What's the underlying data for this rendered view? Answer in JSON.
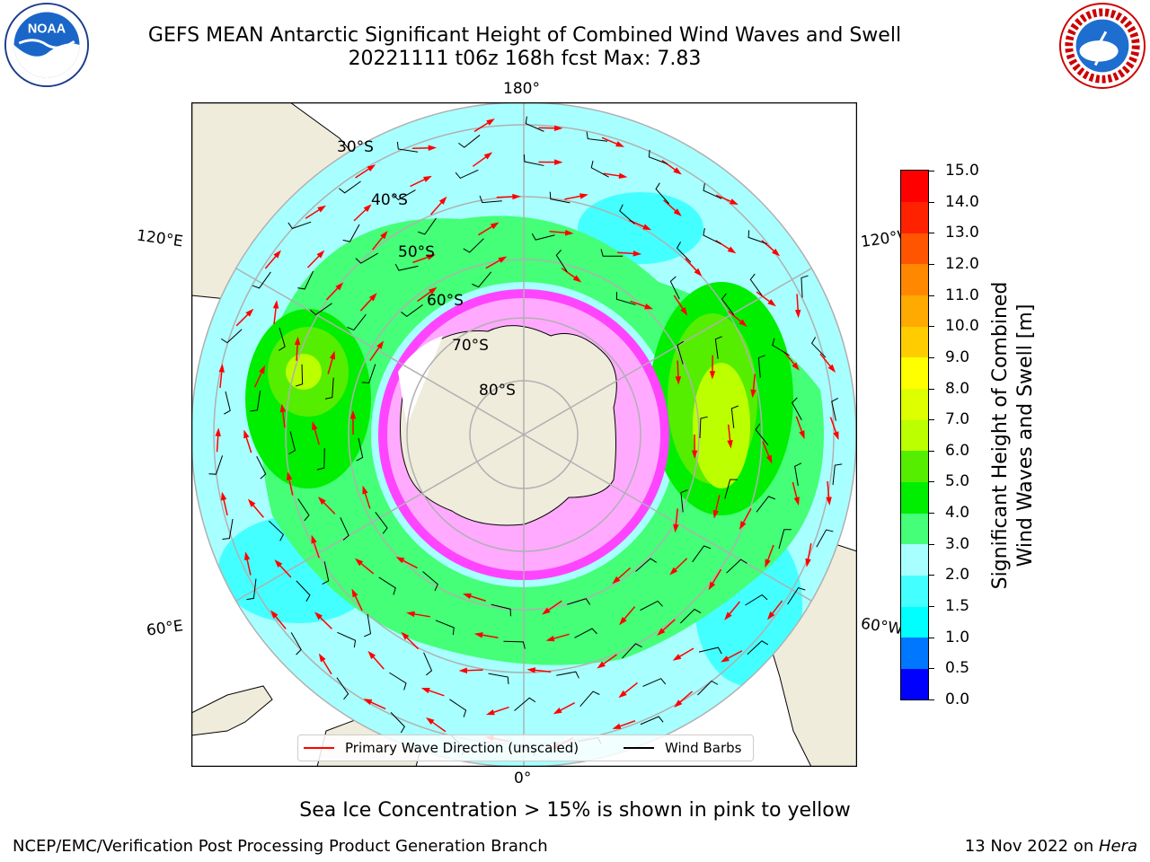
{
  "header": {
    "title_line1": "GEFS MEAN Antarctic Significant Height of Combined Wind Waves and Swell",
    "title_line2": "20221111 t06z 168h fcst   Max: 7.83"
  },
  "logos": {
    "left": {
      "icon": "noaa-logo",
      "text": "NOAA"
    },
    "right": {
      "icon": "nws-logo",
      "text": "NATIONAL WEATHER SERVICE"
    }
  },
  "map": {
    "projection": "south-polar-stereographic",
    "lon_labels": {
      "top": "180°",
      "bottom": "0°",
      "upper_left": "120°E",
      "upper_right": "120°W",
      "lower_left": "60°E",
      "lower_right": "60°W"
    },
    "lat_labels": [
      "30°S",
      "40°S",
      "50°S",
      "60°S",
      "70°S",
      "80°S"
    ],
    "colors": {
      "land": "#efecdc",
      "ocean_base": "#a8ffff",
      "ice": "#ff00ff",
      "wave_arrow": "#ff0000",
      "wind_barb": "#000000",
      "grid": "#b0b0b0"
    }
  },
  "legend": {
    "wave_direction_label": "Primary Wave Direction (unscaled)",
    "wind_barbs_label": "Wind Barbs",
    "wave_direction_color": "#ff0000",
    "wind_barbs_color": "#000000"
  },
  "colorbar": {
    "label_line1": "Significant Height of Combined",
    "label_line2": "Wind Waves and Swell [m]",
    "ticks": [
      "0.0",
      "0.5",
      "1.0",
      "1.5",
      "2.0",
      "3.0",
      "4.0",
      "5.0",
      "6.0",
      "7.0",
      "8.0",
      "9.0",
      "10.0",
      "11.0",
      "12.0",
      "13.0",
      "14.0",
      "15.0"
    ],
    "colors": [
      "#0000ff",
      "#0077ff",
      "#00ffff",
      "#44ffff",
      "#a8ffff",
      "#44ff77",
      "#00ee00",
      "#55ee00",
      "#bbff00",
      "#ddff00",
      "#ffff00",
      "#ffcc00",
      "#ffaa00",
      "#ff8800",
      "#ff5500",
      "#ff2200",
      "#ff0000"
    ]
  },
  "caption": "Sea Ice Concentration > 15% is shown in pink to yellow",
  "footer": {
    "left": "NCEP/EMC/Verification Post Processing Product Generation Branch",
    "right_date": "13 Nov 2022 on ",
    "right_machine": "Hera"
  }
}
